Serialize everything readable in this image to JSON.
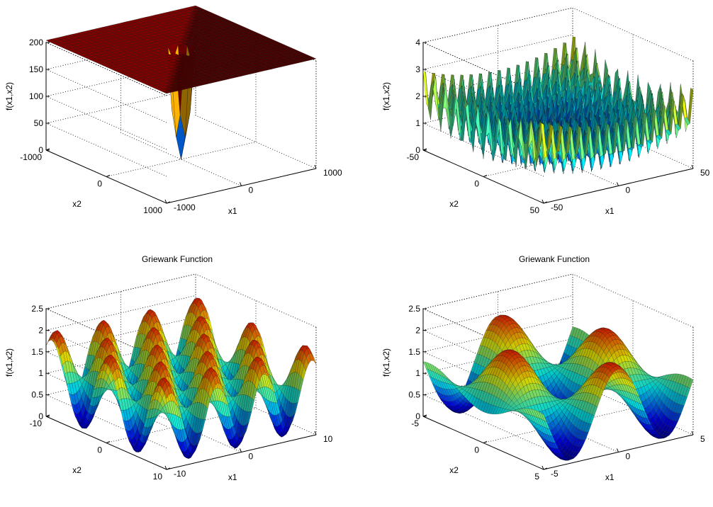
{
  "colormap": [
    "#00008f",
    "#0000ff",
    "#0080ff",
    "#00ffff",
    "#80ff80",
    "#ffff00",
    "#ff8000",
    "#ff0000",
    "#800000"
  ],
  "chart_data": [
    {
      "type": "surface",
      "title": "",
      "function": "sphere",
      "xlabel": "x1",
      "ylabel": "x2",
      "zlabel": "f(x1,x2)",
      "xlim": [
        -1000,
        1000
      ],
      "ylim": [
        -1000,
        1000
      ],
      "zlim": [
        0,
        200
      ],
      "xticks": [
        "-1000",
        "0",
        "1000"
      ],
      "yticks": [
        "-1000",
        "0",
        "1000"
      ],
      "zticks": [
        "0",
        "50",
        "100",
        "150",
        "200"
      ],
      "grid": true
    },
    {
      "type": "surface",
      "title": "",
      "function": "griewank",
      "xlabel": "x1",
      "ylabel": "x2",
      "zlabel": "f(x1,x2)",
      "xlim": [
        -50,
        50
      ],
      "ylim": [
        -50,
        50
      ],
      "zlim": [
        0,
        4
      ],
      "xticks": [
        "-50",
        "0",
        "50"
      ],
      "yticks": [
        "-50",
        "0",
        "50"
      ],
      "zticks": [
        "0",
        "1",
        "2",
        "3",
        "4"
      ],
      "grid": true
    },
    {
      "type": "surface",
      "title": "Griewank Function",
      "function": "griewank",
      "xlabel": "x1",
      "ylabel": "x2",
      "zlabel": "f(x1,x2)",
      "xlim": [
        -10,
        10
      ],
      "ylim": [
        -10,
        10
      ],
      "zlim": [
        0,
        2.5
      ],
      "xticks": [
        "-10",
        "0",
        "10"
      ],
      "yticks": [
        "-10",
        "0",
        "10"
      ],
      "zticks": [
        "0",
        "0.5",
        "1",
        "1.5",
        "2",
        "2.5"
      ],
      "grid": true
    },
    {
      "type": "surface",
      "title": "Griewank Function",
      "function": "griewank",
      "xlabel": "x1",
      "ylabel": "x2",
      "zlabel": "f(x1,x2)",
      "xlim": [
        -5,
        5
      ],
      "ylim": [
        -5,
        5
      ],
      "zlim": [
        0,
        2.5
      ],
      "xticks": [
        "-5",
        "0",
        "5"
      ],
      "yticks": [
        "-5",
        "0",
        "5"
      ],
      "zticks": [
        "0",
        "0.5",
        "1",
        "1.5",
        "2",
        "2.5"
      ],
      "grid": true
    }
  ]
}
